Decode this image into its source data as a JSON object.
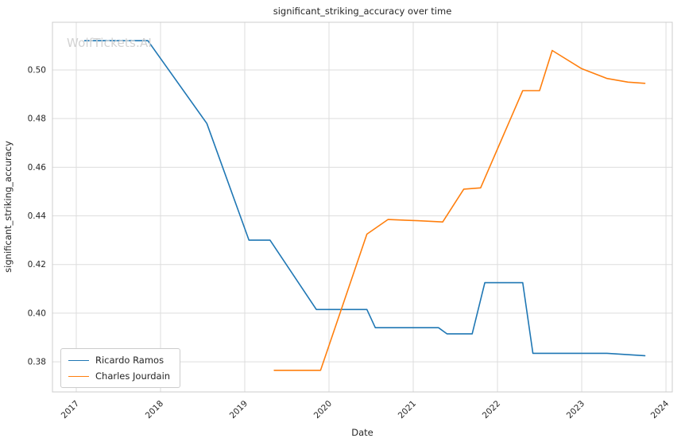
{
  "watermark": "WolfTickets.AI",
  "chart_data": {
    "type": "line",
    "title": "significant_striking_accuracy over time",
    "xlabel": "Date",
    "ylabel": "significant_striking_accuracy",
    "grid": true,
    "legend_position": "lower-left",
    "xlim": [
      2016.717,
      2024.075
    ],
    "ylim": [
      0.3676,
      0.5196
    ],
    "x_ticks": [
      2017,
      2018,
      2019,
      2020,
      2021,
      2022,
      2023,
      2024
    ],
    "y_ticks": [
      0.38,
      0.4,
      0.42,
      0.44,
      0.46,
      0.48,
      0.5
    ],
    "series": [
      {
        "name": "Ricardo Ramos",
        "color": "#1f77b4",
        "points": [
          [
            2017.1,
            0.512
          ],
          [
            2017.85,
            0.512
          ],
          [
            2018.55,
            0.478
          ],
          [
            2019.05,
            0.43
          ],
          [
            2019.3,
            0.43
          ],
          [
            2019.85,
            0.4015
          ],
          [
            2020.45,
            0.4015
          ],
          [
            2020.55,
            0.394
          ],
          [
            2021.3,
            0.394
          ],
          [
            2021.4,
            0.3915
          ],
          [
            2021.7,
            0.3915
          ],
          [
            2021.85,
            0.4125
          ],
          [
            2022.3,
            0.4125
          ],
          [
            2022.42,
            0.3835
          ],
          [
            2023.3,
            0.3835
          ],
          [
            2023.75,
            0.3825
          ]
        ]
      },
      {
        "name": "Charles Jourdain",
        "color": "#ff7f0e",
        "points": [
          [
            2019.35,
            0.3765
          ],
          [
            2019.9,
            0.3765
          ],
          [
            2020.45,
            0.4325
          ],
          [
            2020.7,
            0.4385
          ],
          [
            2021.05,
            0.438
          ],
          [
            2021.35,
            0.4375
          ],
          [
            2021.6,
            0.451
          ],
          [
            2021.8,
            0.4515
          ],
          [
            2022.3,
            0.4915
          ],
          [
            2022.5,
            0.4915
          ],
          [
            2022.65,
            0.508
          ],
          [
            2023.0,
            0.5005
          ],
          [
            2023.3,
            0.4965
          ],
          [
            2023.55,
            0.495
          ],
          [
            2023.75,
            0.4945
          ]
        ]
      }
    ],
    "style": {
      "grid_color": "#dddddd",
      "spine_color": "#cccccc",
      "tick_label_color": "#262626",
      "background": "#ffffff"
    }
  }
}
